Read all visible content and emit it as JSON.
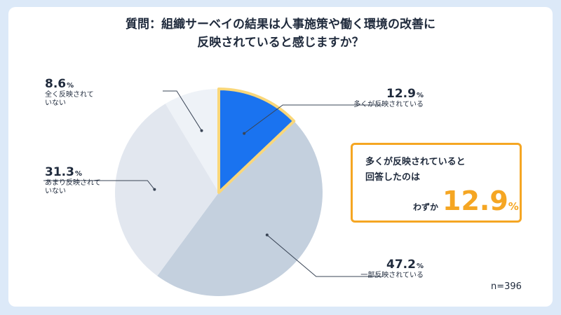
{
  "title": {
    "line1": "質問：組織サーベイの結果は人事施策や働く環境の改善に",
    "line2": "反映されていると感じますか？"
  },
  "chart_data": {
    "type": "pie",
    "title": "質問：組織サーベイの結果は人事施策や働く環境の改善に反映されていると感じますか？",
    "unit": "%",
    "slices": [
      {
        "label": "多くが反映されている",
        "value": 12.9,
        "color": "#1a73f0",
        "highlight": true
      },
      {
        "label": "一部反映されている",
        "value": 47.2,
        "color": "#c4d0de"
      },
      {
        "label": "あまり反映されて\nいない",
        "value": 31.3,
        "color": "#e2e7ef"
      },
      {
        "label": "全く反映されて\nいない",
        "value": 8.6,
        "color": "#eef2f7"
      }
    ],
    "highlight_border_color": "#f9d77a",
    "sample_size": "n=396"
  },
  "callout": {
    "text": "多くが反映されていると\n回答したのは",
    "prefix": "わずか",
    "value": "12.9",
    "unit": "%",
    "border_color": "#f5a623"
  }
}
